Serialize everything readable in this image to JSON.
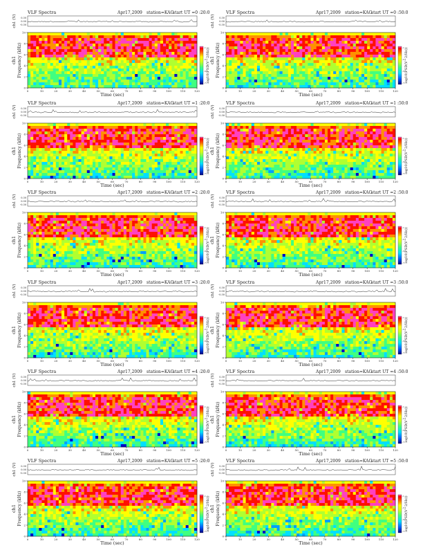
{
  "panels": [
    {
      "header": "VLF Spectra",
      "date": "Apr17,2009",
      "station": "station=KAG",
      "start": "start UT =0 :20:0"
    },
    {
      "header": "VLF Spectra",
      "date": "Apr17,2009",
      "station": "station=KAG",
      "start": "start UT =0 :50:0"
    },
    {
      "header": "VLF Spectra",
      "date": "Apr17,2009",
      "station": "station=KAG",
      "start": "start UT =1 :20:0"
    },
    {
      "header": "VLF Spectra",
      "date": "Apr17,2009",
      "station": "station=KAG",
      "start": "start UT =1 :50:0"
    },
    {
      "header": "VLF Spectra",
      "date": "Apr17,2009",
      "station": "station=KAG",
      "start": "start UT =2 :20:0"
    },
    {
      "header": "VLF Spectra",
      "date": "Apr17,2009",
      "station": "station=KAG",
      "start": "start UT =2 :50:0"
    },
    {
      "header": "VLF Spectra",
      "date": "Apr17,2009",
      "station": "station=KAG",
      "start": "start UT =3 :20:0"
    },
    {
      "header": "VLF Spectra",
      "date": "Apr17,2009",
      "station": "station=KAG",
      "start": "start UT =3 :50:0"
    },
    {
      "header": "VLF Spectra",
      "date": "Apr17,2009",
      "station": "station=KAG",
      "start": "start UT =4 :20:0"
    },
    {
      "header": "VLF Spectra",
      "date": "Apr17,2009",
      "station": "station=KAG",
      "start": "start UT =4 :50:0"
    },
    {
      "header": "VLF Spectra",
      "date": "Apr17,2009",
      "station": "station=KAG",
      "start": "start UT =5 :20:0"
    },
    {
      "header": "VLF Spectra",
      "date": "Apr17,2009",
      "station": "station=KAG",
      "start": "start UT =5 :50:0"
    }
  ],
  "chart_data": {
    "type": "heatmap",
    "layout": "6 rows x 2 columns of spectrograms, each with a waveform strip above",
    "xlabel": "Time (sec)",
    "xlim": [
      0,
      120
    ],
    "xticks": [
      "0",
      "10",
      "20",
      "30",
      "40",
      "50",
      "60",
      "70",
      "80",
      "90",
      "100",
      "110",
      "120"
    ],
    "ylabel": "Frequency (kHz)",
    "ylim": [
      0,
      10
    ],
    "yticks": [
      "0",
      "2",
      "4",
      "6",
      "8",
      "10"
    ],
    "channel_label": "ch1",
    "waveform_label": "ch1 (V)",
    "waveform_ticks": [
      "0.30",
      "0.00",
      "-0.30"
    ],
    "colorbar_label": "log10(PSD(V^2/Hz))",
    "colorbar_ticks": [
      "-1",
      "-3",
      "-5",
      "-7"
    ],
    "colormap": [
      "#0000c8",
      "#00a0ff",
      "#00e0ff",
      "#40ff80",
      "#b0ff30",
      "#ffff00",
      "#ff9000",
      "#ff1000",
      "#ff40c0"
    ]
  }
}
